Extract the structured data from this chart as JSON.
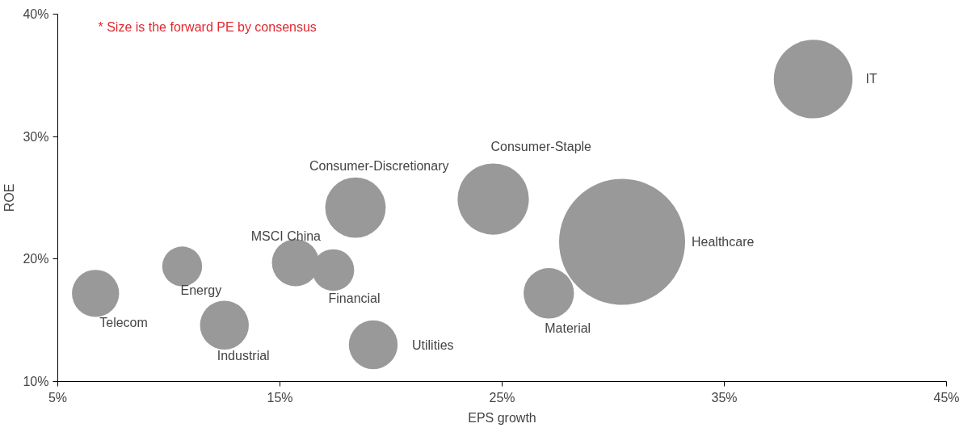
{
  "chart_data": {
    "type": "bubble",
    "xlabel": "EPS growth",
    "ylabel": "ROE",
    "annotations": [
      "* Size is the forward PE by consensus"
    ],
    "xlim": [
      5,
      45
    ],
    "xticks": [
      {
        "value": 5,
        "label": "5%"
      },
      {
        "value": 15,
        "label": "15%"
      },
      {
        "value": 25,
        "label": "25%"
      },
      {
        "value": 35,
        "label": "35%"
      },
      {
        "value": 45,
        "label": "45%"
      }
    ],
    "ylim": [
      10,
      40
    ],
    "yticks": [
      {
        "value": 10,
        "label": "10%"
      },
      {
        "value": 20,
        "label": "20%"
      },
      {
        "value": 30,
        "label": "30%"
      },
      {
        "value": 40,
        "label": "40%"
      }
    ],
    "grid": false,
    "series": [
      {
        "name": "Telecom",
        "color": "#999999",
        "x": [
          6.7
        ],
        "values": [
          17.2
        ],
        "sizes": [
          0.14
        ]
      },
      {
        "name": "Energy",
        "color": "#999999",
        "x": [
          10.6
        ],
        "values": [
          19.4
        ],
        "sizes": [
          0.1
        ]
      },
      {
        "name": "Industrial",
        "color": "#999999",
        "x": [
          12.5
        ],
        "values": [
          14.6
        ],
        "sizes": [
          0.15
        ]
      },
      {
        "name": "MSCI China",
        "color": "#999999",
        "x": [
          15.7
        ],
        "values": [
          19.7
        ],
        "sizes": [
          0.14
        ]
      },
      {
        "name": "Financial",
        "color": "#999999",
        "x": [
          17.4
        ],
        "values": [
          19.1
        ],
        "sizes": [
          0.11
        ]
      },
      {
        "name": "Consumer-Discretionary",
        "color": "#999999",
        "x": [
          18.4
        ],
        "values": [
          24.2
        ],
        "sizes": [
          0.23
        ]
      },
      {
        "name": "Utilities",
        "color": "#999999",
        "x": [
          19.2
        ],
        "values": [
          13.0
        ],
        "sizes": [
          0.15
        ]
      },
      {
        "name": "Consumer-Staple",
        "color": "#999999",
        "x": [
          24.6
        ],
        "values": [
          24.9
        ],
        "sizes": [
          0.32
        ]
      },
      {
        "name": "Material",
        "color": "#999999",
        "x": [
          27.1
        ],
        "values": [
          17.2
        ],
        "sizes": [
          0.16
        ]
      },
      {
        "name": "Healthcare",
        "color": "#999999",
        "x": [
          30.4
        ],
        "values": [
          21.4
        ],
        "sizes": [
          1
        ]
      },
      {
        "name": "IT",
        "color": "#999999",
        "x": [
          39.0
        ],
        "values": [
          34.7
        ],
        "sizes": [
          0.39
        ]
      }
    ]
  }
}
